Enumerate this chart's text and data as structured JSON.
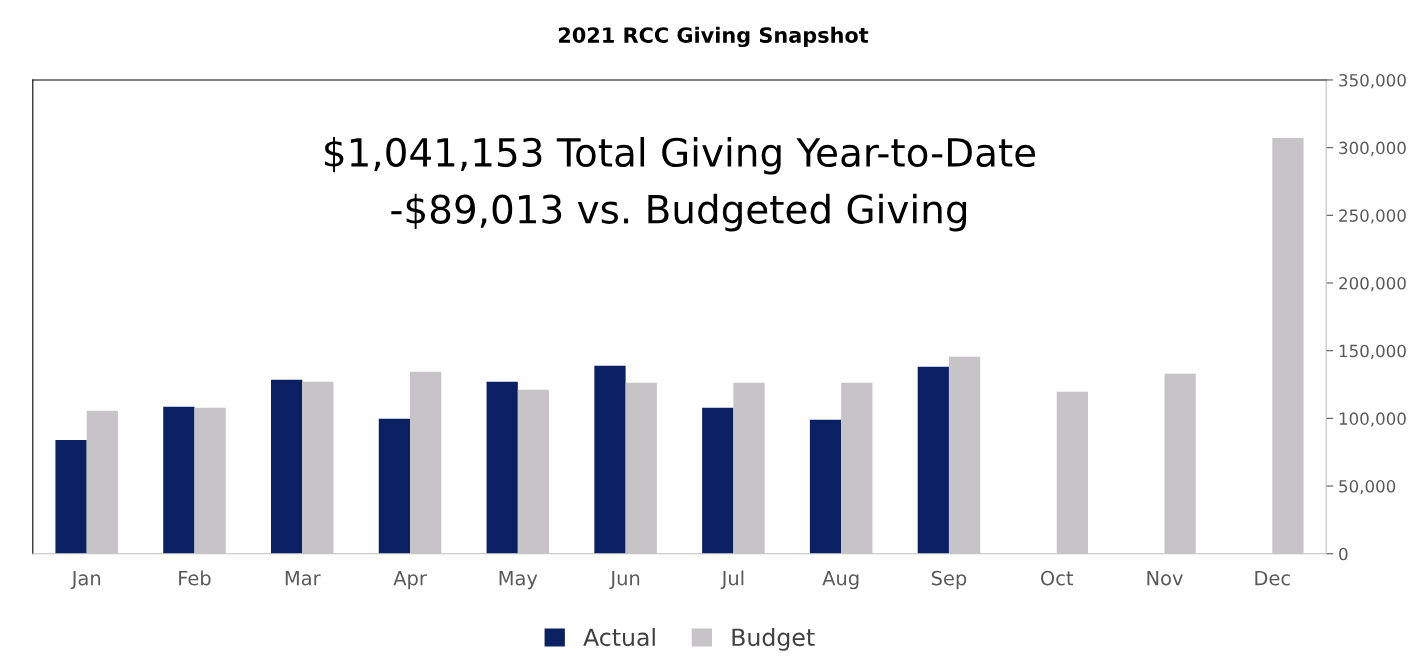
{
  "chart_data": {
    "type": "bar",
    "title": "2021 RCC Giving Snapshot",
    "categories": [
      "Jan",
      "Feb",
      "Mar",
      "Apr",
      "May",
      "Jun",
      "Jul",
      "Aug",
      "Sep",
      "Oct",
      "Nov",
      "Dec"
    ],
    "series": [
      {
        "name": "Actual",
        "color": "#0b1f63",
        "values": [
          84000,
          108500,
          128500,
          99700,
          127000,
          138800,
          107800,
          98900,
          138100,
          null,
          null,
          null
        ]
      },
      {
        "name": "Budget",
        "color": "#c6c4c6",
        "values": [
          105600,
          107800,
          127000,
          134400,
          121100,
          126300,
          126300,
          126300,
          145500,
          119600,
          132900,
          307200
        ]
      }
    ],
    "ylim": [
      0,
      350000
    ],
    "yticks": [
      {
        "value": 0,
        "label": "0"
      },
      {
        "value": 50000,
        "label": "50,000"
      },
      {
        "value": 100000,
        "label": "100,000"
      },
      {
        "value": 150000,
        "label": "150,000"
      },
      {
        "value": 200000,
        "label": "200,000"
      },
      {
        "value": 250000,
        "label": "250,000"
      },
      {
        "value": 300000,
        "label": "300,000"
      },
      {
        "value": 350000,
        "label": "350,000"
      }
    ],
    "annotations": [
      "$1,041,153 Total Giving Year-to-Date",
      "-$89,013 vs. Budgeted Giving"
    ],
    "legend": "bottom",
    "grid": false
  }
}
